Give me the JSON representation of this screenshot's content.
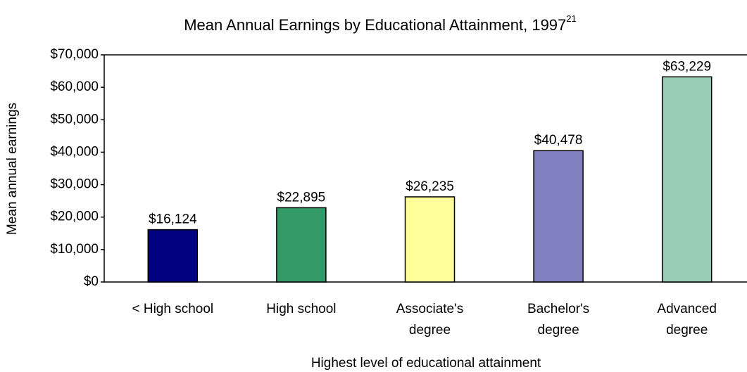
{
  "chart_data": {
    "type": "bar",
    "title": "Mean Annual Earnings by Educational Attainment, 1997",
    "title_superscript": "21",
    "x_label": "Highest level of educational attainment",
    "y_label": "Mean annual earnings",
    "categories": [
      "< High school",
      "High school",
      "Associate's\ndegree",
      "Bachelor's\ndegree",
      "Advanced\ndegree"
    ],
    "values": [
      16124,
      22895,
      26235,
      40478,
      63229
    ],
    "value_labels": [
      "$16,124",
      "$22,895",
      "$26,235",
      "$40,478",
      "$63,229"
    ],
    "colors": [
      "#000080",
      "#339966",
      "#ffff99",
      "#8080c0",
      "#99ccb4"
    ],
    "ylim": [
      0,
      70000
    ],
    "yticks": [
      {
        "value": 0,
        "label": "$0"
      },
      {
        "value": 10000,
        "label": "$10,000"
      },
      {
        "value": 20000,
        "label": "$20,000"
      },
      {
        "value": 30000,
        "label": "$30,000"
      },
      {
        "value": 40000,
        "label": "$40,000"
      },
      {
        "value": 50000,
        "label": "$50,000"
      },
      {
        "value": 60000,
        "label": "$60,000"
      },
      {
        "value": 70000,
        "label": "$70,000"
      }
    ],
    "grid": false
  }
}
